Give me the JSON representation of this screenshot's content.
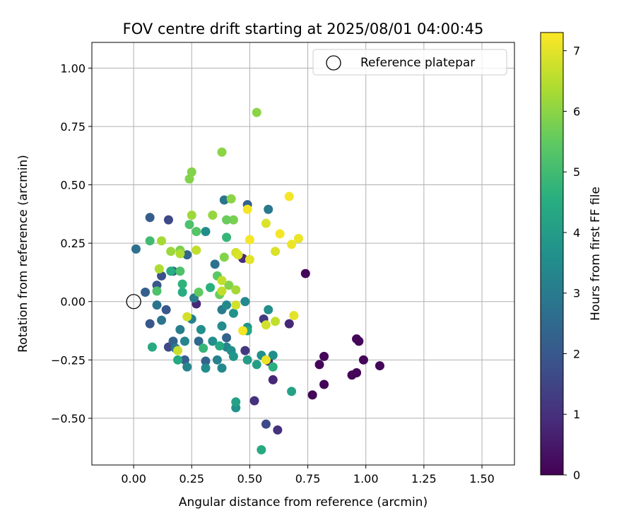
{
  "chart_data": {
    "type": "scatter",
    "title": "FOV centre drift starting at 2025/08/01 04:00:45",
    "xlabel": "Angular distance from reference (arcmin)",
    "ylabel": "Rotation from reference (arcmin)",
    "xlim": [
      -0.18,
      1.64
    ],
    "ylim": [
      -0.7,
      1.11
    ],
    "xticks": [
      "0.00",
      "0.25",
      "0.50",
      "0.75",
      "1.00",
      "1.25",
      "1.50"
    ],
    "xtick_values": [
      0,
      0.25,
      0.5,
      0.75,
      1.0,
      1.25,
      1.5
    ],
    "yticks": [
      "−0.50",
      "−0.25",
      "0.00",
      "0.25",
      "0.50",
      "0.75",
      "1.00"
    ],
    "ytick_values": [
      -0.5,
      -0.25,
      0,
      0.25,
      0.5,
      0.75,
      1.0
    ],
    "grid": true,
    "legend": {
      "position": "top-right",
      "label": "Reference platepar"
    },
    "reference_point": {
      "x": 0.0,
      "y": 0.0
    },
    "colorbar": {
      "label": "Hours from first FF file",
      "colormap": "viridis",
      "range": [
        0,
        7.3
      ],
      "ticks": [
        "0",
        "1",
        "2",
        "3",
        "4",
        "5",
        "6",
        "7"
      ],
      "tick_values": [
        0,
        1,
        2,
        3,
        4,
        5,
        6,
        7
      ]
    },
    "points": [
      {
        "x": 0.74,
        "y": 0.12,
        "c": 0.1
      },
      {
        "x": 0.77,
        "y": -0.4,
        "c": 0.1
      },
      {
        "x": 0.8,
        "y": -0.27,
        "c": 0.1
      },
      {
        "x": 0.82,
        "y": -0.235,
        "c": 0.1
      },
      {
        "x": 0.82,
        "y": -0.355,
        "c": 0.1
      },
      {
        "x": 0.94,
        "y": -0.315,
        "c": 0.1
      },
      {
        "x": 0.96,
        "y": -0.305,
        "c": 0.1
      },
      {
        "x": 0.96,
        "y": -0.16,
        "c": 0.1
      },
      {
        "x": 0.97,
        "y": -0.17,
        "c": 0.1
      },
      {
        "x": 0.99,
        "y": -0.25,
        "c": 0.1
      },
      {
        "x": 1.06,
        "y": -0.275,
        "c": 0.1
      },
      {
        "x": 0.58,
        "y": -0.255,
        "c": 0.6
      },
      {
        "x": 0.6,
        "y": -0.335,
        "c": 0.8
      },
      {
        "x": 0.62,
        "y": -0.55,
        "c": 1.0
      },
      {
        "x": 0.52,
        "y": -0.425,
        "c": 1.0
      },
      {
        "x": 0.67,
        "y": -0.095,
        "c": 0.8
      },
      {
        "x": 0.27,
        "y": -0.01,
        "c": 0.8
      },
      {
        "x": 0.47,
        "y": 0.185,
        "c": 0.9
      },
      {
        "x": 0.48,
        "y": -0.21,
        "c": 1.2
      },
      {
        "x": 0.56,
        "y": -0.075,
        "c": 1.2
      },
      {
        "x": 0.57,
        "y": -0.525,
        "c": 1.6
      },
      {
        "x": 0.05,
        "y": 0.04,
        "c": 2.2
      },
      {
        "x": 0.07,
        "y": -0.095,
        "c": 2.0
      },
      {
        "x": 0.12,
        "y": 0.11,
        "c": 1.8
      },
      {
        "x": 0.15,
        "y": 0.35,
        "c": 1.6
      },
      {
        "x": 0.15,
        "y": -0.195,
        "c": 1.6
      },
      {
        "x": 0.1,
        "y": 0.07,
        "c": 2.0
      },
      {
        "x": 0.07,
        "y": 0.36,
        "c": 2.1
      },
      {
        "x": 0.01,
        "y": 0.225,
        "c": 2.7
      },
      {
        "x": 0.14,
        "y": -0.035,
        "c": 2.0
      },
      {
        "x": 0.17,
        "y": 0.13,
        "c": 2.1
      },
      {
        "x": 0.17,
        "y": -0.17,
        "c": 2.3
      },
      {
        "x": 0.22,
        "y": -0.25,
        "c": 2.2
      },
      {
        "x": 0.23,
        "y": 0.2,
        "c": 2.4
      },
      {
        "x": 0.31,
        "y": -0.255,
        "c": 2.3
      },
      {
        "x": 0.28,
        "y": -0.17,
        "c": 2.5
      },
      {
        "x": 0.4,
        "y": -0.155,
        "c": 2.3
      },
      {
        "x": 0.49,
        "y": 0.415,
        "c": 2.3
      },
      {
        "x": 0.39,
        "y": 0.435,
        "c": 2.8
      },
      {
        "x": 0.58,
        "y": 0.395,
        "c": 2.9
      },
      {
        "x": 0.35,
        "y": 0.16,
        "c": 2.7
      },
      {
        "x": 0.12,
        "y": -0.08,
        "c": 2.8
      },
      {
        "x": 0.1,
        "y": -0.015,
        "c": 2.8
      },
      {
        "x": 0.18,
        "y": -0.2,
        "c": 2.9
      },
      {
        "x": 0.2,
        "y": -0.12,
        "c": 3.1
      },
      {
        "x": 0.22,
        "y": -0.17,
        "c": 3.3
      },
      {
        "x": 0.23,
        "y": -0.28,
        "c": 3.3
      },
      {
        "x": 0.25,
        "y": -0.075,
        "c": 3.2
      },
      {
        "x": 0.26,
        "y": 0.015,
        "c": 3.0
      },
      {
        "x": 0.29,
        "y": -0.12,
        "c": 3.6
      },
      {
        "x": 0.31,
        "y": 0.3,
        "c": 3.5
      },
      {
        "x": 0.31,
        "y": -0.285,
        "c": 3.5
      },
      {
        "x": 0.34,
        "y": -0.17,
        "c": 3.6
      },
      {
        "x": 0.36,
        "y": -0.25,
        "c": 3.2
      },
      {
        "x": 0.38,
        "y": -0.035,
        "c": 3.0
      },
      {
        "x": 0.38,
        "y": -0.285,
        "c": 3.4
      },
      {
        "x": 0.38,
        "y": -0.105,
        "c": 3.5
      },
      {
        "x": 0.4,
        "y": -0.195,
        "c": 3.3
      },
      {
        "x": 0.4,
        "y": -0.015,
        "c": 3.4
      },
      {
        "x": 0.42,
        "y": -0.21,
        "c": 3.6
      },
      {
        "x": 0.43,
        "y": -0.235,
        "c": 3.8
      },
      {
        "x": 0.43,
        "y": -0.05,
        "c": 3.7
      },
      {
        "x": 0.44,
        "y": -0.455,
        "c": 3.7
      },
      {
        "x": 0.48,
        "y": 0.0,
        "c": 3.4
      },
      {
        "x": 0.49,
        "y": -0.11,
        "c": 3.7
      },
      {
        "x": 0.49,
        "y": -0.25,
        "c": 4.0
      },
      {
        "x": 0.53,
        "y": -0.27,
        "c": 4.1
      },
      {
        "x": 0.55,
        "y": -0.23,
        "c": 3.6
      },
      {
        "x": 0.58,
        "y": -0.035,
        "c": 3.6
      },
      {
        "x": 0.6,
        "y": -0.23,
        "c": 3.6
      },
      {
        "x": 0.6,
        "y": -0.28,
        "c": 4.6
      },
      {
        "x": 0.68,
        "y": -0.385,
        "c": 4.2
      },
      {
        "x": 0.55,
        "y": -0.635,
        "c": 4.4
      },
      {
        "x": 0.44,
        "y": -0.43,
        "c": 4.2
      },
      {
        "x": 0.49,
        "y": -0.125,
        "c": 4.3
      },
      {
        "x": 0.19,
        "y": -0.25,
        "c": 4.4
      },
      {
        "x": 0.37,
        "y": -0.19,
        "c": 4.4
      },
      {
        "x": 0.08,
        "y": -0.195,
        "c": 4.4
      },
      {
        "x": 0.16,
        "y": 0.13,
        "c": 4.5
      },
      {
        "x": 0.21,
        "y": 0.04,
        "c": 4.5
      },
      {
        "x": 0.21,
        "y": 0.075,
        "c": 4.7
      },
      {
        "x": 0.3,
        "y": -0.2,
        "c": 4.8
      },
      {
        "x": 0.33,
        "y": 0.06,
        "c": 4.6
      },
      {
        "x": 0.4,
        "y": 0.275,
        "c": 4.8
      },
      {
        "x": 0.07,
        "y": 0.26,
        "c": 5.0
      },
      {
        "x": 0.1,
        "y": 0.045,
        "c": 5.2
      },
      {
        "x": 0.2,
        "y": 0.13,
        "c": 5.2
      },
      {
        "x": 0.24,
        "y": 0.33,
        "c": 5.2
      },
      {
        "x": 0.27,
        "y": 0.3,
        "c": 5.3
      },
      {
        "x": 0.28,
        "y": 0.04,
        "c": 5.5
      },
      {
        "x": 0.36,
        "y": 0.11,
        "c": 5.4
      },
      {
        "x": 0.37,
        "y": 0.03,
        "c": 5.6
      },
      {
        "x": 0.43,
        "y": 0.35,
        "c": 5.8
      },
      {
        "x": 0.4,
        "y": 0.35,
        "c": 5.6
      },
      {
        "x": 0.39,
        "y": 0.19,
        "c": 5.9
      },
      {
        "x": 0.41,
        "y": 0.07,
        "c": 5.9
      },
      {
        "x": 0.44,
        "y": 0.05,
        "c": 6.3
      },
      {
        "x": 0.2,
        "y": 0.22,
        "c": 5.8
      },
      {
        "x": 0.25,
        "y": 0.555,
        "c": 5.9
      },
      {
        "x": 0.24,
        "y": 0.525,
        "c": 5.9
      },
      {
        "x": 0.38,
        "y": 0.64,
        "c": 6.0
      },
      {
        "x": 0.42,
        "y": 0.44,
        "c": 6.0
      },
      {
        "x": 0.53,
        "y": 0.81,
        "c": 6.0
      },
      {
        "x": 0.34,
        "y": 0.37,
        "c": 6.1
      },
      {
        "x": 0.25,
        "y": 0.37,
        "c": 6.2
      },
      {
        "x": 0.16,
        "y": 0.215,
        "c": 6.2
      },
      {
        "x": 0.12,
        "y": 0.26,
        "c": 6.3
      },
      {
        "x": 0.11,
        "y": 0.14,
        "c": 6.4
      },
      {
        "x": 0.2,
        "y": 0.205,
        "c": 6.4
      },
      {
        "x": 0.27,
        "y": 0.22,
        "c": 6.6
      },
      {
        "x": 0.19,
        "y": -0.21,
        "c": 6.7
      },
      {
        "x": 0.23,
        "y": -0.065,
        "c": 6.8
      },
      {
        "x": 0.38,
        "y": 0.09,
        "c": 6.6
      },
      {
        "x": 0.38,
        "y": 0.045,
        "c": 6.6
      },
      {
        "x": 0.44,
        "y": -0.015,
        "c": 6.8
      },
      {
        "x": 0.44,
        "y": 0.21,
        "c": 6.8
      },
      {
        "x": 0.45,
        "y": 0.2,
        "c": 6.9
      },
      {
        "x": 0.5,
        "y": 0.18,
        "c": 7.0
      },
      {
        "x": 0.5,
        "y": 0.265,
        "c": 7.2
      },
      {
        "x": 0.49,
        "y": 0.395,
        "c": 7.2
      },
      {
        "x": 0.57,
        "y": 0.335,
        "c": 6.9
      },
      {
        "x": 0.57,
        "y": -0.1,
        "c": 6.8
      },
      {
        "x": 0.57,
        "y": -0.25,
        "c": 7.1
      },
      {
        "x": 0.47,
        "y": -0.125,
        "c": 7.2
      },
      {
        "x": 0.61,
        "y": 0.215,
        "c": 6.9
      },
      {
        "x": 0.61,
        "y": -0.085,
        "c": 6.6
      },
      {
        "x": 0.63,
        "y": 0.29,
        "c": 7.2
      },
      {
        "x": 0.67,
        "y": 0.45,
        "c": 7.2
      },
      {
        "x": 0.68,
        "y": 0.245,
        "c": 7.1
      },
      {
        "x": 0.69,
        "y": -0.06,
        "c": 7.0
      },
      {
        "x": 0.71,
        "y": 0.27,
        "c": 7.1
      }
    ]
  }
}
